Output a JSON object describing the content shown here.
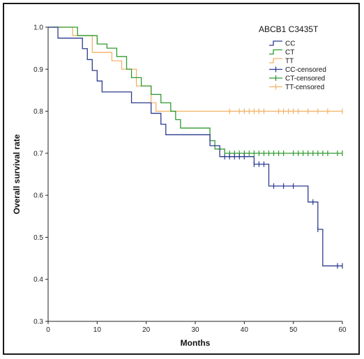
{
  "chart_data": {
    "type": "line",
    "subtype": "kaplan-meier",
    "xlabel": "Months",
    "ylabel": "Overall survival rate",
    "xlim": [
      0,
      60
    ],
    "ylim": [
      0.3,
      1.0
    ],
    "xticks": [
      0,
      10,
      20,
      30,
      40,
      50,
      60
    ],
    "yticks": [
      0.3,
      0.4,
      0.5,
      0.6,
      0.7,
      0.8,
      0.9,
      1.0
    ],
    "ytick_labels": [
      "0.3",
      "0.4",
      "0.5",
      "0.6",
      "0.7",
      "0.8",
      "0.9",
      "1.0"
    ],
    "grid": false,
    "legend": {
      "title": "ABCB1 C3435T",
      "position": "top-right",
      "entries": [
        {
          "label": "CC",
          "kind": "line",
          "color": "#2b3a8f"
        },
        {
          "label": "CT",
          "kind": "line",
          "color": "#2e9a2e"
        },
        {
          "label": "TT",
          "kind": "line",
          "color": "#f2b46a"
        },
        {
          "label": "CC-censored",
          "kind": "censor",
          "color": "#2b3a8f"
        },
        {
          "label": "CT-censored",
          "kind": "censor",
          "color": "#2e9a2e"
        },
        {
          "label": "TT-censored",
          "kind": "censor",
          "color": "#f2b46a"
        }
      ]
    },
    "series": [
      {
        "name": "CC",
        "color": "#2b3a8f",
        "steps": [
          [
            0,
            1.0
          ],
          [
            2,
            0.974
          ],
          [
            7,
            0.949
          ],
          [
            8,
            0.923
          ],
          [
            9,
            0.897
          ],
          [
            10,
            0.872
          ],
          [
            11,
            0.846
          ],
          [
            13,
            0.846
          ],
          [
            16,
            0.846
          ],
          [
            17,
            0.82
          ],
          [
            21,
            0.795
          ],
          [
            23,
            0.769
          ],
          [
            24,
            0.744
          ],
          [
            27,
            0.744
          ],
          [
            31,
            0.744
          ],
          [
            33,
            0.718
          ],
          [
            35,
            0.692
          ],
          [
            42,
            0.674
          ],
          [
            45,
            0.622
          ],
          [
            53,
            0.584
          ],
          [
            55,
            0.519
          ],
          [
            56,
            0.432
          ],
          [
            60,
            0.432
          ]
        ],
        "censored": [
          [
            36,
            0.692
          ],
          [
            37,
            0.692
          ],
          [
            38,
            0.692
          ],
          [
            39,
            0.692
          ],
          [
            40,
            0.692
          ],
          [
            42,
            0.674
          ],
          [
            43,
            0.674
          ],
          [
            44,
            0.674
          ],
          [
            46,
            0.622
          ],
          [
            48,
            0.622
          ],
          [
            50,
            0.622
          ],
          [
            54,
            0.584
          ],
          [
            55,
            0.519
          ],
          [
            59,
            0.432
          ],
          [
            60,
            0.432
          ]
        ]
      },
      {
        "name": "CT",
        "color": "#2e9a2e",
        "steps": [
          [
            0,
            1.0
          ],
          [
            6,
            0.98
          ],
          [
            10,
            0.96
          ],
          [
            12,
            0.95
          ],
          [
            14,
            0.93
          ],
          [
            16,
            0.9
          ],
          [
            17,
            0.88
          ],
          [
            19,
            0.86
          ],
          [
            21,
            0.84
          ],
          [
            23,
            0.82
          ],
          [
            25,
            0.8
          ],
          [
            26,
            0.78
          ],
          [
            27,
            0.76
          ],
          [
            33,
            0.73
          ],
          [
            34,
            0.71
          ],
          [
            36,
            0.7
          ],
          [
            60,
            0.7
          ]
        ],
        "censored": [
          [
            37,
            0.7
          ],
          [
            38,
            0.7
          ],
          [
            39,
            0.7
          ],
          [
            40,
            0.7
          ],
          [
            41,
            0.7
          ],
          [
            42,
            0.7
          ],
          [
            43,
            0.7
          ],
          [
            44,
            0.7
          ],
          [
            45,
            0.7
          ],
          [
            46,
            0.7
          ],
          [
            47,
            0.7
          ],
          [
            48,
            0.7
          ],
          [
            50,
            0.7
          ],
          [
            51,
            0.7
          ],
          [
            52,
            0.7
          ],
          [
            53,
            0.7
          ],
          [
            54,
            0.7
          ],
          [
            55,
            0.7
          ],
          [
            56,
            0.7
          ],
          [
            57,
            0.7
          ],
          [
            59,
            0.7
          ],
          [
            60,
            0.7
          ]
        ]
      },
      {
        "name": "TT",
        "color": "#f2b46a",
        "steps": [
          [
            0,
            1.0
          ],
          [
            5,
            0.98
          ],
          [
            9,
            0.94
          ],
          [
            13,
            0.92
          ],
          [
            15,
            0.9
          ],
          [
            18,
            0.86
          ],
          [
            21,
            0.82
          ],
          [
            22,
            0.8
          ],
          [
            60,
            0.8
          ]
        ],
        "censored": [
          [
            37,
            0.8
          ],
          [
            39,
            0.8
          ],
          [
            40,
            0.8
          ],
          [
            41,
            0.8
          ],
          [
            42,
            0.8
          ],
          [
            43,
            0.8
          ],
          [
            44,
            0.8
          ],
          [
            47,
            0.8
          ],
          [
            48,
            0.8
          ],
          [
            49,
            0.8
          ],
          [
            50,
            0.8
          ],
          [
            51,
            0.8
          ],
          [
            53,
            0.8
          ],
          [
            55,
            0.8
          ],
          [
            57,
            0.8
          ],
          [
            60,
            0.8
          ]
        ]
      }
    ]
  }
}
